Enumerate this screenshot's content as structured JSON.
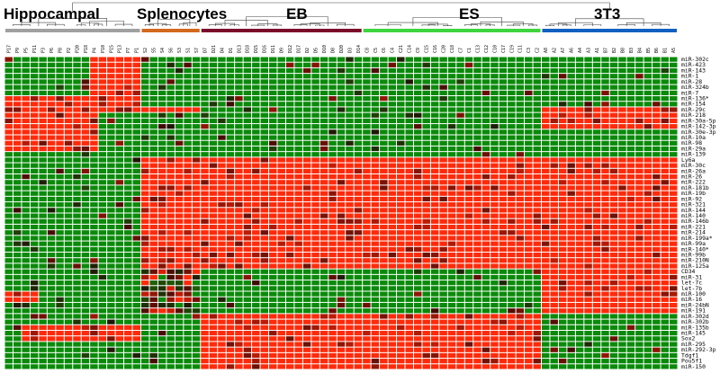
{
  "chart_data": {
    "type": "heatmap",
    "title": "",
    "colors": {
      "high": "#ff2a0a",
      "low": "#0a8a0a",
      "mid": "#2a0800",
      "grid": "#ffffff"
    },
    "groups": [
      {
        "name": "Hippocampal",
        "color": "#a0a0a0",
        "columns": [
          "P17",
          "P9",
          "P5",
          "P11",
          "P3",
          "P6",
          "P8",
          "P2",
          "P20",
          "P18",
          "P4",
          "P10",
          "P15",
          "P13",
          "P7",
          "P1"
        ]
      },
      {
        "name": "Splenocytes",
        "color": "#d2691e",
        "columns": [
          "S2",
          "S5",
          "S4",
          "S6",
          "S3",
          "S1",
          "S7"
        ]
      },
      {
        "name": "EB",
        "color": "#7a0a2a",
        "columns": [
          "D7",
          "D21",
          "D4",
          "D1",
          "D13",
          "D18",
          "D15",
          "D16",
          "D11",
          "D9",
          "D12",
          "D17",
          "D2",
          "D5",
          "D10",
          "D8",
          "D20",
          "D3",
          "D14"
        ]
      },
      {
        "name": "ES",
        "color": "#3dd43d",
        "columns": [
          "C8",
          "C5",
          "C6",
          "C4",
          "C21",
          "C14",
          "C9",
          "C15",
          "C16",
          "C20",
          "C18",
          "C7",
          "C1",
          "C13",
          "C12",
          "C10",
          "C17",
          "C19",
          "C11",
          "C3",
          "C2"
        ]
      },
      {
        "name": "3T3",
        "color": "#1060c0",
        "columns": [
          "A8",
          "A2",
          "A7",
          "A6",
          "A4",
          "A3",
          "A1",
          "B7",
          "B2",
          "B8",
          "B3",
          "B4",
          "B5",
          "B6",
          "B1",
          "A5"
        ]
      }
    ],
    "rows": [
      "miR-302c",
      "miR-423",
      "miR-143",
      "miR-1",
      "miR-28",
      "miR-324b",
      "miR-7",
      "miR-136*",
      "miR-154",
      "miR-29c",
      "miR-218",
      "miR-30a-5p",
      "miR-142-3p",
      "miR-30e-3p",
      "miR-10a",
      "miR-98",
      "miR-29a",
      "miR-139",
      "Ly6a",
      "miR-30c",
      "miR-26a",
      "miR-26",
      "miR-222",
      "miR-181b",
      "miR-19b",
      "miR-92",
      "miR-321",
      "miR-144",
      "miR-140",
      "miR-146b",
      "miR-221",
      "miR-214",
      "miR-199a*",
      "miR-99a",
      "miR-140*",
      "miR-99b",
      "miR-210N",
      "miR-125a",
      "CD34",
      "miR-31",
      "let-7c",
      "let-7b",
      "miR-100",
      "miR-16",
      "miR-24bN",
      "miR-191",
      "miR-302d",
      "miR-302b",
      "miR-135b",
      "miR-145",
      "Sox2",
      "miR-295",
      "miR-292-3p",
      "Tdgf1",
      "Pou5f1",
      "miR-150"
    ],
    "blocks": [
      {
        "r": [
          0,
          9
        ],
        "groups": [
          "Hippocampal"
        ],
        "cols": [
          10,
          16
        ],
        "v": 1
      },
      {
        "r": [
          7,
          17
        ],
        "groups": [
          "Hippocampal"
        ],
        "cols": [
          0,
          11
        ],
        "v": 1
      },
      {
        "r": [
          9,
          10
        ],
        "groups": [
          "Hippocampal",
          "Splenocytes"
        ],
        "cols": [
          0,
          23
        ],
        "v": 1
      },
      {
        "r": [
          18,
          38
        ],
        "groups": [
          "Splenocytes",
          "EB",
          "ES"
        ],
        "cols": [
          16,
          63
        ],
        "v": 1
      },
      {
        "r": [
          9,
          13
        ],
        "groups": [
          "3T3"
        ],
        "cols": [
          63,
          79
        ],
        "v": 1
      },
      {
        "r": [
          18,
          46
        ],
        "groups": [
          "3T3"
        ],
        "cols": [
          63,
          79
        ],
        "v": 1
      },
      {
        "r": [
          38,
          46
        ],
        "groups": [
          "Splenocytes"
        ],
        "cols": [
          16,
          23
        ],
        "v": 0.5
      },
      {
        "r": [
          46,
          56
        ],
        "groups": [
          "EB",
          "ES"
        ],
        "cols": [
          23,
          63
        ],
        "v": 0.9
      },
      {
        "r": [
          42,
          44
        ],
        "groups": [
          "Hippocampal"
        ],
        "cols": [
          0,
          4
        ],
        "v": 1
      },
      {
        "r": [
          48,
          51
        ],
        "groups": [
          "Hippocampal"
        ],
        "cols": [
          2,
          16
        ],
        "v": 1
      }
    ]
  }
}
